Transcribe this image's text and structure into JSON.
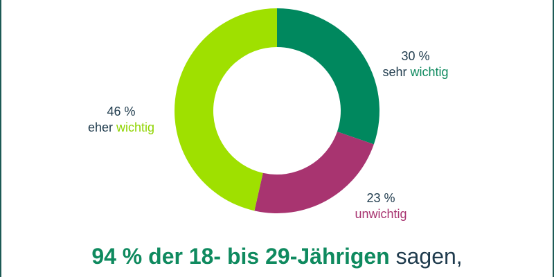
{
  "chart_data": {
    "type": "pie",
    "donut": true,
    "slices": [
      {
        "value": 30,
        "label_value": "30 %",
        "label_prefix": "sehr",
        "label_highlight": "wichtig",
        "color": "#00885e",
        "highlight_color": "#0f8a5f"
      },
      {
        "value": 23,
        "label_value": "23 %",
        "label_prefix": "",
        "label_highlight": "unwichtig",
        "color": "#a83470",
        "highlight_color": "#a83470"
      },
      {
        "value": 46,
        "label_value": "46 %",
        "label_prefix": "eher",
        "label_highlight": "wichtig",
        "color": "#9fe000",
        "highlight_color": "#8fd400"
      }
    ]
  },
  "footer": {
    "highlight": "94 % der 18- bis 29-Jährigen",
    "rest": "sagen,"
  },
  "colors": {
    "text": "#1f3b4d",
    "frame": "#1d5a55"
  }
}
